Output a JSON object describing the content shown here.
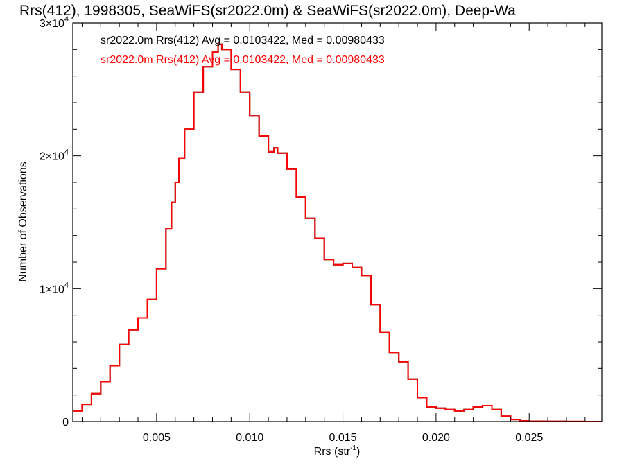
{
  "chart_data": {
    "type": "line",
    "style": "histogram-step",
    "title": "Rrs(412), 1998305, SeaWiFS(sr2022.0m) & SeaWiFS(sr2022.0m), Deep-Wa",
    "xlabel": "Rrs (str",
    "xlabel_sup": "-1",
    "xlabel_close": ")",
    "ylabel": "Number of Observations",
    "xlim": [
      0.0005,
      0.0289
    ],
    "ylim": [
      0,
      30000
    ],
    "x_ticks": [
      0.005,
      0.01,
      0.015,
      0.02,
      0.025
    ],
    "x_tick_labels": [
      "0.005",
      "0.010",
      "0.015",
      "0.020",
      "0.025"
    ],
    "y_ticks": [
      0,
      10000,
      20000,
      30000
    ],
    "y_tick_labels": [
      {
        "base": "0",
        "exp": ""
      },
      {
        "base": "1×10",
        "exp": "4"
      },
      {
        "base": "2×10",
        "exp": "4"
      },
      {
        "base": "3×10",
        "exp": "4"
      }
    ],
    "grid": false,
    "legend_position": "top-left",
    "series": [
      {
        "name": "sr2022.0m Rrs(412) Avg = 0.0103422, Med = 0.00980433",
        "color": "#000000",
        "x": [
          0.0005,
          0.001,
          0.0015,
          0.002,
          0.0025,
          0.003,
          0.0035,
          0.004,
          0.0045,
          0.005,
          0.0055,
          0.0058,
          0.006,
          0.0062,
          0.0065,
          0.007,
          0.0075,
          0.008,
          0.0083,
          0.0085,
          0.009,
          0.0095,
          0.01,
          0.0105,
          0.011,
          0.0113,
          0.0115,
          0.012,
          0.0125,
          0.013,
          0.0135,
          0.014,
          0.0145,
          0.015,
          0.0155,
          0.016,
          0.0165,
          0.017,
          0.0175,
          0.018,
          0.0185,
          0.019,
          0.0195,
          0.02,
          0.0205,
          0.021,
          0.0215,
          0.022,
          0.0225,
          0.023,
          0.0235,
          0.024,
          0.0245,
          0.025,
          0.026,
          0.027,
          0.028,
          0.0289
        ],
        "y": [
          800,
          1300,
          2100,
          3000,
          4200,
          5800,
          6900,
          7800,
          9200,
          11500,
          14500,
          16500,
          18000,
          19800,
          22000,
          24800,
          26700,
          27800,
          28400,
          28000,
          26500,
          24800,
          23000,
          21500,
          20300,
          20600,
          20200,
          19000,
          16900,
          15300,
          13800,
          12200,
          11800,
          11900,
          11600,
          11000,
          8800,
          6700,
          5200,
          4500,
          3200,
          1800,
          1100,
          1000,
          900,
          800,
          900,
          1100,
          1200,
          900,
          400,
          150,
          50,
          20,
          10,
          5,
          0,
          0
        ]
      },
      {
        "name": "sr2022.0m Rrs(412) Avg = 0.0103422, Med = 0.00980433",
        "color": "#ff0000",
        "x": [
          0.0005,
          0.001,
          0.0015,
          0.002,
          0.0025,
          0.003,
          0.0035,
          0.004,
          0.0045,
          0.005,
          0.0055,
          0.0058,
          0.006,
          0.0062,
          0.0065,
          0.007,
          0.0075,
          0.008,
          0.0083,
          0.0085,
          0.009,
          0.0095,
          0.01,
          0.0105,
          0.011,
          0.0113,
          0.0115,
          0.012,
          0.0125,
          0.013,
          0.0135,
          0.014,
          0.0145,
          0.015,
          0.0155,
          0.016,
          0.0165,
          0.017,
          0.0175,
          0.018,
          0.0185,
          0.019,
          0.0195,
          0.02,
          0.0205,
          0.021,
          0.0215,
          0.022,
          0.0225,
          0.023,
          0.0235,
          0.024,
          0.0245,
          0.025,
          0.026,
          0.027,
          0.028,
          0.0289
        ],
        "y": [
          800,
          1300,
          2100,
          3000,
          4200,
          5800,
          6900,
          7800,
          9200,
          11500,
          14500,
          16500,
          18000,
          19800,
          22000,
          24800,
          26700,
          27800,
          28400,
          28000,
          26500,
          24800,
          23000,
          21500,
          20300,
          20600,
          20200,
          19000,
          16900,
          15300,
          13800,
          12200,
          11800,
          11900,
          11600,
          11000,
          8800,
          6700,
          5200,
          4500,
          3200,
          1800,
          1100,
          1000,
          900,
          800,
          900,
          1100,
          1200,
          900,
          400,
          150,
          50,
          20,
          10,
          5,
          0,
          0
        ]
      }
    ]
  }
}
